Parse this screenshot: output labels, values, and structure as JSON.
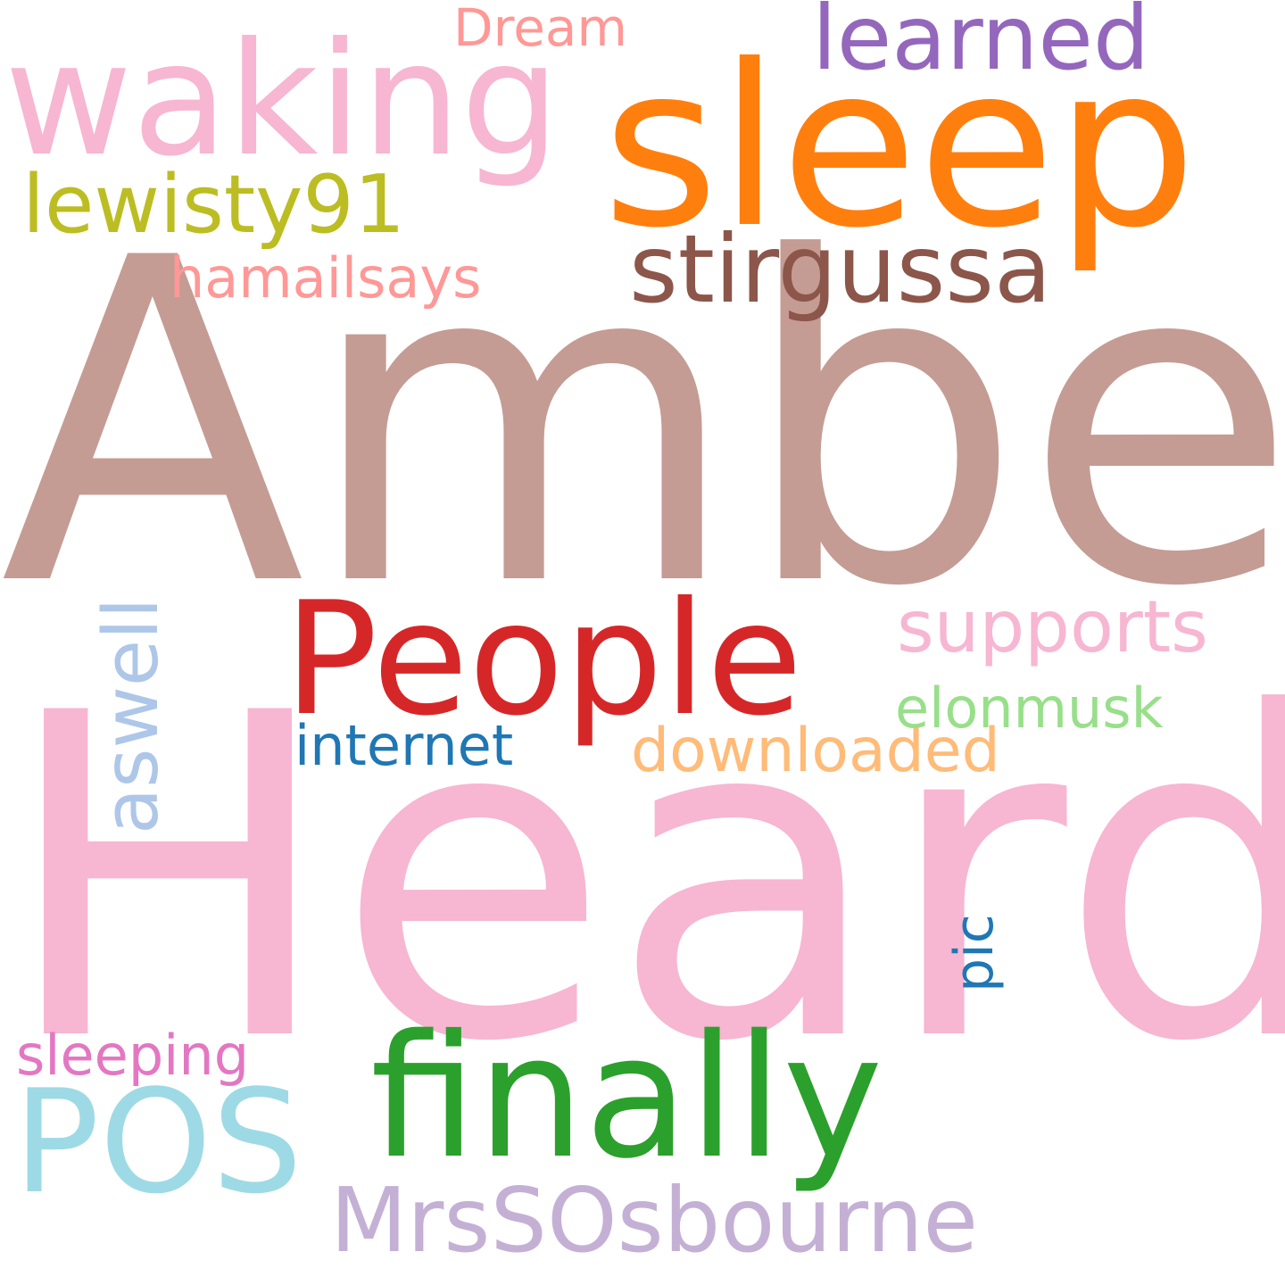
{
  "word_cloud": {
    "background": "#ffffff",
    "words": [
      {
        "text": "Heard",
        "color": "#f7b6d2",
        "orientation": "horizontal"
      },
      {
        "text": "Amber",
        "color": "#c49c94",
        "orientation": "horizontal"
      },
      {
        "text": "sleep",
        "color": "#ff7f0e",
        "orientation": "horizontal"
      },
      {
        "text": "waking",
        "color": "#f7b6d2",
        "orientation": "horizontal"
      },
      {
        "text": "People",
        "color": "#d62728",
        "orientation": "horizontal"
      },
      {
        "text": "finally",
        "color": "#2ca02c",
        "orientation": "horizontal"
      },
      {
        "text": "POS",
        "color": "#9edae5",
        "orientation": "horizontal"
      },
      {
        "text": "stirgussa",
        "color": "#8c564b",
        "orientation": "horizontal"
      },
      {
        "text": "learned",
        "color": "#9467bd",
        "orientation": "horizontal"
      },
      {
        "text": "MrsSOsbourne",
        "color": "#c5b0d5",
        "orientation": "horizontal"
      },
      {
        "text": "lewisty91",
        "color": "#bcbd22",
        "orientation": "horizontal"
      },
      {
        "text": "supports",
        "color": "#f7b6d2",
        "orientation": "horizontal"
      },
      {
        "text": "aswell",
        "color": "#aec7e8",
        "orientation": "vertical"
      },
      {
        "text": "downloaded",
        "color": "#ffbb78",
        "orientation": "horizontal"
      },
      {
        "text": "elonmusk",
        "color": "#98df8a",
        "orientation": "horizontal"
      },
      {
        "text": "internet",
        "color": "#1f77b4",
        "orientation": "horizontal"
      },
      {
        "text": "hamailsays",
        "color": "#ff9896",
        "orientation": "horizontal"
      },
      {
        "text": "sleeping",
        "color": "#e377c2",
        "orientation": "horizontal"
      },
      {
        "text": "Dream",
        "color": "#ff9896",
        "orientation": "horizontal"
      },
      {
        "text": "pic",
        "color": "#1f77b4",
        "orientation": "vertical"
      }
    ]
  }
}
